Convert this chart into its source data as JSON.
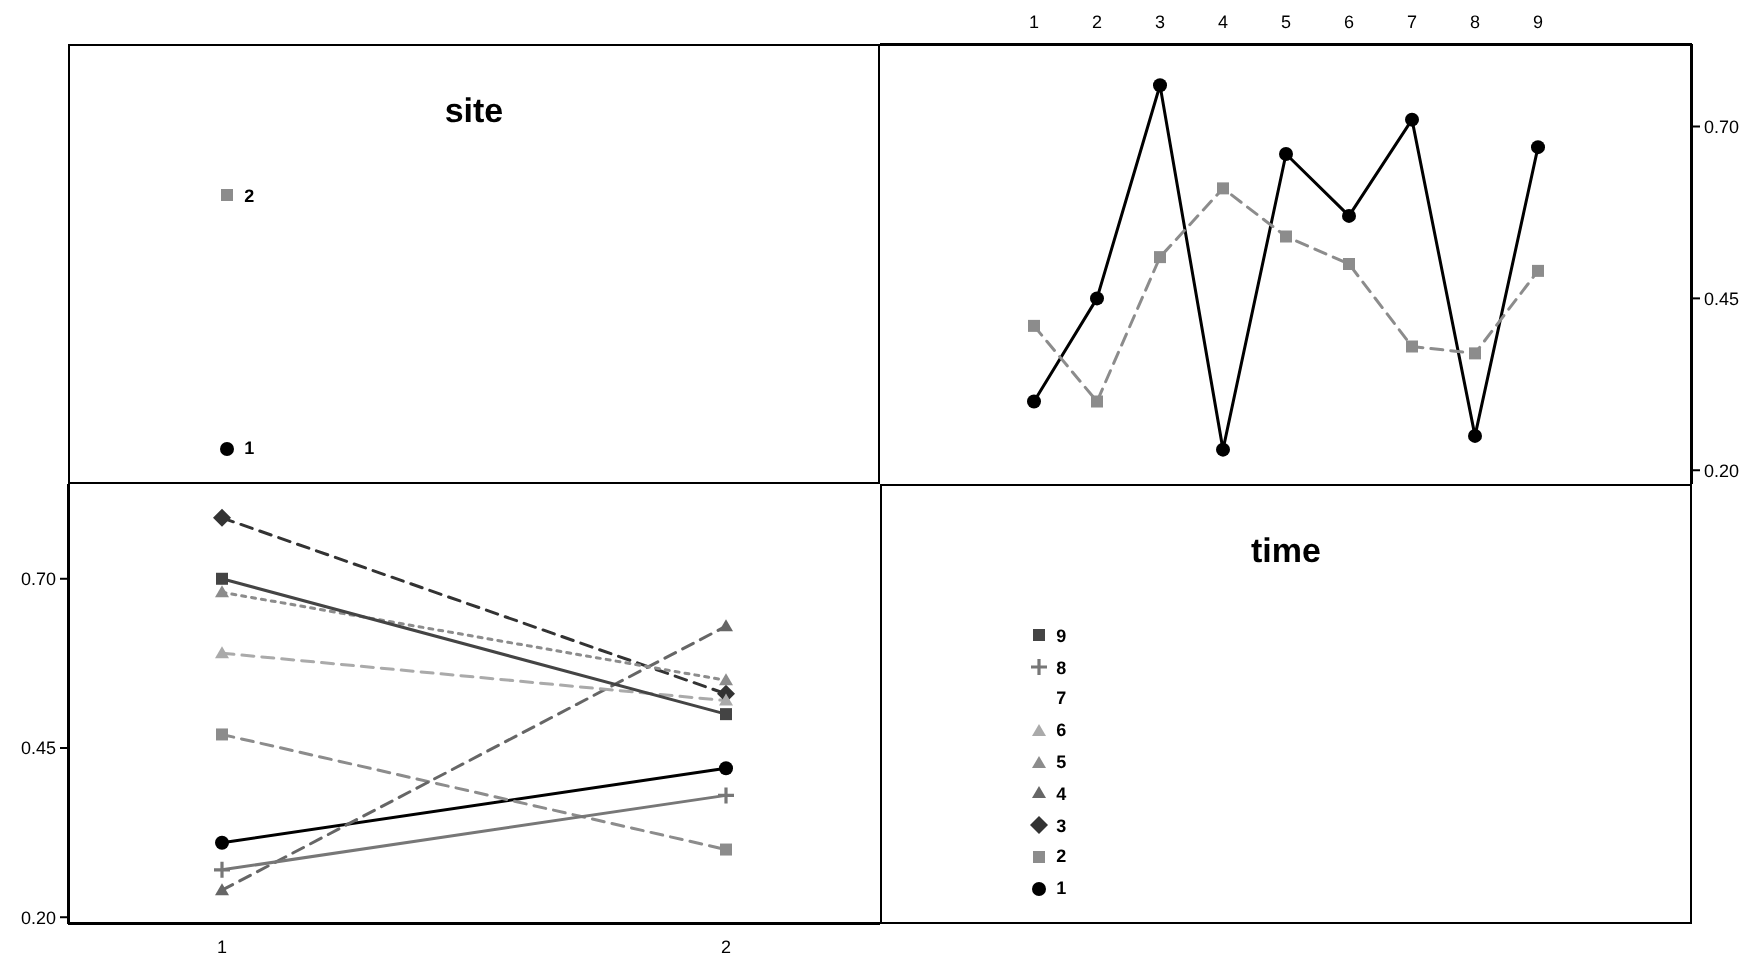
{
  "chart_data": [
    {
      "type": "line",
      "categories": [
        "1",
        "2",
        "3",
        "4",
        "5",
        "6",
        "7",
        "8",
        "9"
      ],
      "series": [
        {
          "name": "1",
          "color": "#000000",
          "marker": "circle",
          "line_style": "solid",
          "values": [
            0.3,
            0.45,
            0.76,
            0.23,
            0.66,
            0.57,
            0.71,
            0.25,
            0.67
          ]
        },
        {
          "name": "2",
          "color": "#8c8c8c",
          "marker": "square",
          "line_style": "dashed",
          "values": [
            0.41,
            0.3,
            0.51,
            0.61,
            0.54,
            0.5,
            0.38,
            0.37,
            0.49
          ]
        }
      ],
      "ylim": [
        0.18,
        0.82
      ],
      "yticks": [
        {
          "value": 0.2,
          "label": "0.20"
        },
        {
          "value": 0.45,
          "label": "0.45"
        },
        {
          "value": 0.7,
          "label": "0.70"
        }
      ],
      "legend": "left",
      "legend_title": "site"
    },
    {
      "type": "line",
      "categories": [
        "1",
        "2"
      ],
      "series": [
        {
          "name": "1",
          "color": "#000000",
          "marker": "circle",
          "line_style": "solid",
          "values": [
            0.31,
            0.42
          ]
        },
        {
          "name": "2",
          "color": "#8c8c8c",
          "marker": "square",
          "line_style": "dashed",
          "values": [
            0.47,
            0.3
          ]
        },
        {
          "name": "3",
          "color": "#333333",
          "marker": "diamond",
          "line_style": "dashed",
          "values": [
            0.79,
            0.53
          ]
        },
        {
          "name": "4",
          "color": "#666666",
          "marker": "triangle",
          "line_style": "dashed",
          "values": [
            0.24,
            0.63
          ]
        },
        {
          "name": "5",
          "color": "#8c8c8c",
          "marker": "triangle",
          "line_style": "dotted",
          "values": [
            0.68,
            0.55
          ]
        },
        {
          "name": "6",
          "color": "#aaaaaa",
          "marker": "triangle",
          "line_style": "dashed",
          "values": [
            0.59,
            0.52
          ]
        },
        {
          "name": "7",
          "marker": "none",
          "values": [
            null,
            null
          ]
        },
        {
          "name": "8",
          "color": "#777777",
          "marker": "cross",
          "line_style": "solid",
          "values": [
            0.27,
            0.38
          ]
        },
        {
          "name": "9",
          "color": "#444444",
          "marker": "square",
          "line_style": "solid",
          "values": [
            0.7,
            0.5
          ]
        }
      ],
      "ylim": [
        0.19,
        0.84
      ],
      "yticks": [
        {
          "value": 0.2,
          "label": "0.20"
        },
        {
          "value": 0.45,
          "label": "0.45"
        },
        {
          "value": 0.7,
          "label": "0.70"
        }
      ],
      "legend": "right",
      "legend_title": "time"
    }
  ]
}
